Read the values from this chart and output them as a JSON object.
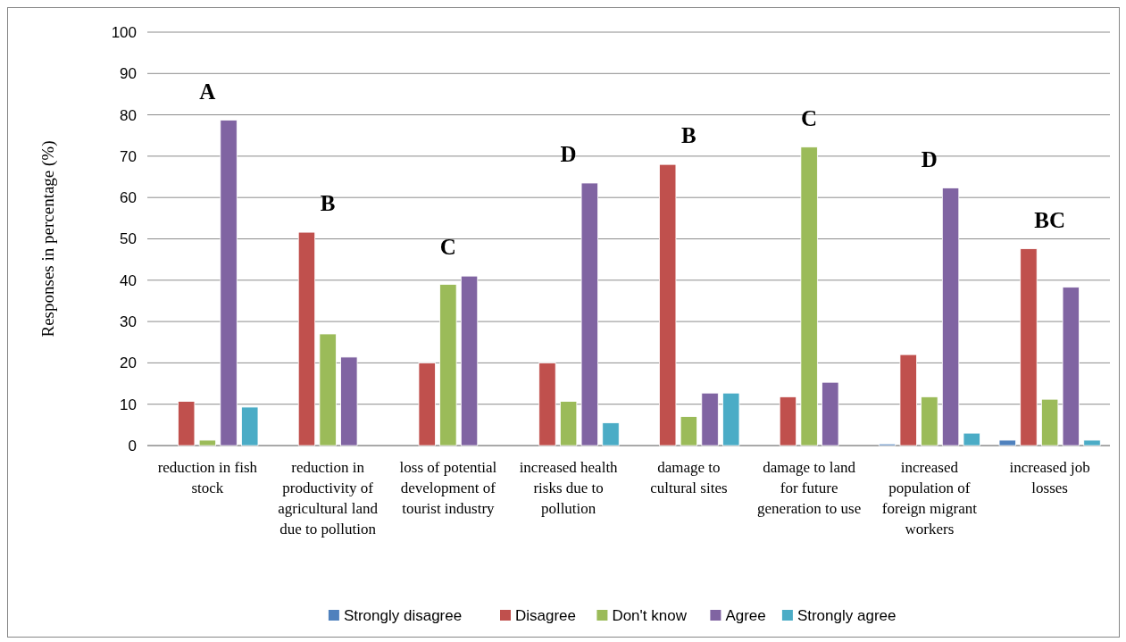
{
  "chart_data": {
    "type": "bar",
    "ylabel": "Responses in percentage  (%)",
    "categories": [
      "reduction in fish stock",
      "reduction in productivity of agricultural land due to pollution",
      "loss of potential development of tourist industry",
      "increased health risks due to pollution",
      "damage to cultural sites",
      "damage to land for future generation to use",
      "increased population of foreign migrant workers",
      "increased job losses"
    ],
    "series": [
      {
        "name": "Strongly disagree",
        "color": "#4f81bd",
        "values": [
          0,
          0,
          0,
          0,
          0,
          0,
          0.4,
          1.3
        ]
      },
      {
        "name": "Disagree",
        "color": "#c0504d",
        "values": [
          10.7,
          51.6,
          20,
          20,
          68,
          11.8,
          22,
          47.6
        ]
      },
      {
        "name": "Don't know",
        "color": "#9bbb59",
        "values": [
          1.3,
          27,
          39,
          10.7,
          7,
          72.2,
          11.8,
          11.2
        ]
      },
      {
        "name": "Agree",
        "color": "#8064a2",
        "values": [
          78.7,
          21.4,
          41,
          63.5,
          12.7,
          15.3,
          62.3,
          38.3
        ]
      },
      {
        "name": "Strongly agree",
        "color": "#4bacc6",
        "values": [
          9.3,
          0,
          0,
          5.5,
          12.7,
          0,
          3,
          1.3
        ]
      }
    ],
    "annotations": [
      "A",
      "B",
      "C",
      "D",
      "B",
      "C",
      "D",
      "BC"
    ],
    "ylim": [
      0,
      100
    ],
    "yticks": [
      0,
      10,
      20,
      30,
      40,
      50,
      60,
      70,
      80,
      90,
      100
    ],
    "grid": "y",
    "legend": "bottom"
  }
}
